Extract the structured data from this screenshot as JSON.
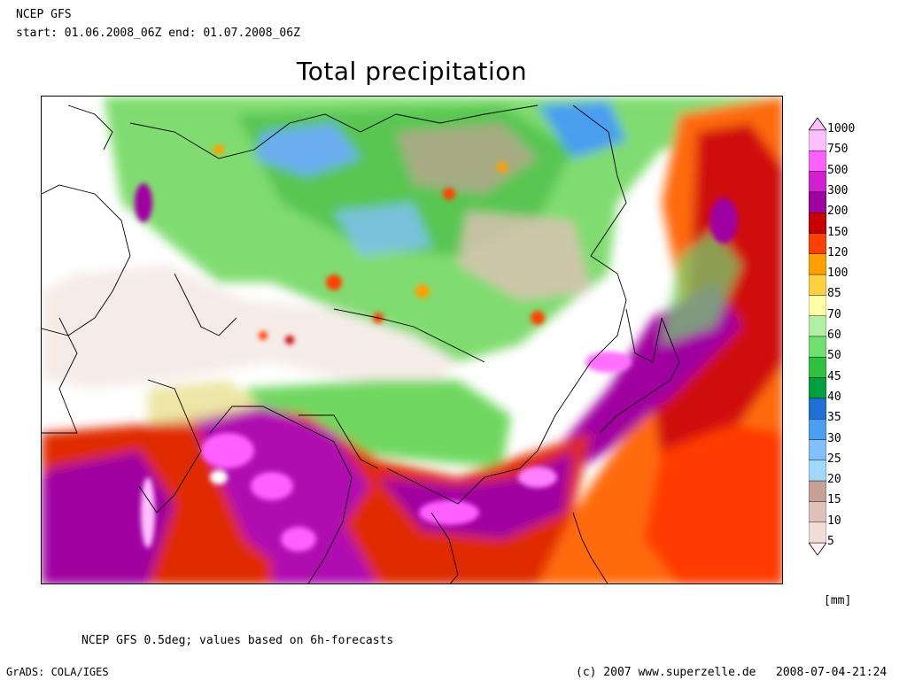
{
  "header": {
    "model": "NCEP GFS",
    "period": "start: 01.06.2008_06Z end: 01.07.2008_06Z"
  },
  "title": "Total precipitation",
  "legend": {
    "unit": "[mm]",
    "levels": [
      "5",
      "10",
      "15",
      "20",
      "25",
      "30",
      "35",
      "40",
      "45",
      "50",
      "60",
      "70",
      "85",
      "100",
      "120",
      "150",
      "200",
      "300",
      "500",
      "750",
      "1000"
    ],
    "colors": [
      "#fff4f0",
      "#f0dcd8",
      "#e0c0b8",
      "#c8a098",
      "#a0d8ff",
      "#80c0ff",
      "#4a9ef0",
      "#2070d8",
      "#00a040",
      "#30c040",
      "#70e070",
      "#b0f0a0",
      "#ffffa8",
      "#ffd040",
      "#ff9f00",
      "#ff4000",
      "#c80000",
      "#a000a0",
      "#d020d0",
      "#ff60ff",
      "#ffc0ff"
    ]
  },
  "footer": {
    "note": "NCEP GFS 0.5deg; values based on 6h-forecasts",
    "grads": "GrADS: COLA/IGES",
    "copyright": "(c) 2007 www.superzelle.de",
    "timestamp": "2008-07-04-21:24"
  }
}
